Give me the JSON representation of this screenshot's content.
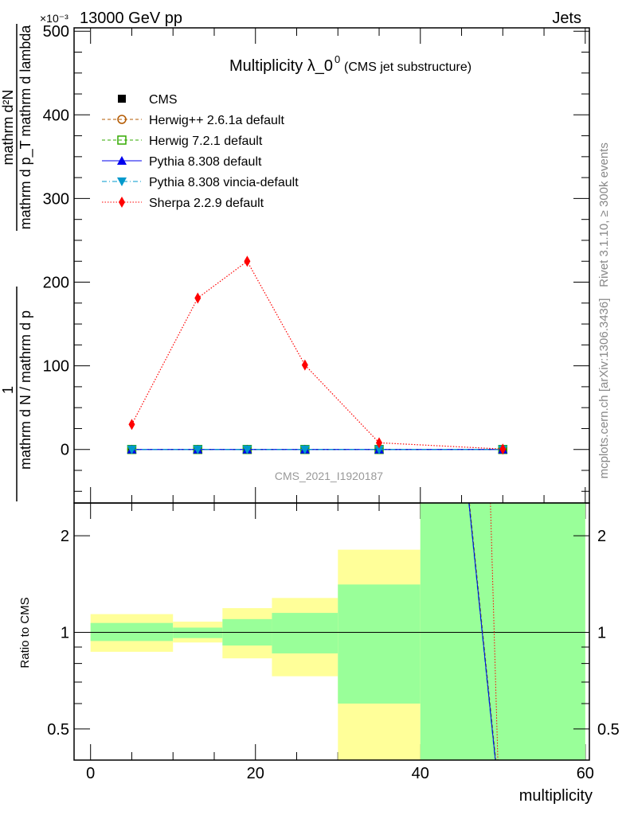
{
  "header": {
    "left": "13000 GeV pp",
    "right": "Jets",
    "exponent": "×10⁻³"
  },
  "side_text": {
    "rivet": "Rivet 3.1.10, ≥ 300k events",
    "mcplots": "mcplots.cern.ch [arXiv:1306.3436]"
  },
  "watermark": "CMS_2021_I1920187",
  "chart_data": [
    {
      "type": "line",
      "title": "Multiplicity λ_0",
      "title_sup": "0",
      "subtitle": "(CMS jet substructure)",
      "ylabel_num_left": "1",
      "ylabel_den_left": "mathrm d N / mathrm d p",
      "ylabel_num_right": "mathrm d²N",
      "ylabel_den_right": "mathrm d p_T mathrm d lambda",
      "ylim": [
        -64,
        504
      ],
      "xlim": [
        -2,
        60.5
      ],
      "yticks": [
        "0",
        "100",
        "200",
        "300",
        "400",
        "500"
      ],
      "x": [
        5,
        13,
        19,
        26,
        35,
        50
      ],
      "series": [
        {
          "name": "CMS",
          "color": "#000000",
          "marker": "square",
          "values": [
            0,
            0,
            0,
            0,
            0,
            0
          ]
        },
        {
          "name": "Herwig++ 2.6.1a default",
          "color": "#b35900",
          "marker": "circle-open",
          "dash": "4,3",
          "values": [
            0,
            0,
            0,
            0,
            0,
            0
          ]
        },
        {
          "name": "Herwig 7.2.1 default",
          "color": "#33aa00",
          "marker": "square-open",
          "dash": "4,3",
          "values": [
            0,
            0,
            0,
            0,
            0,
            0
          ]
        },
        {
          "name": "Pythia 8.308 default",
          "color": "#0000ee",
          "marker": "triangle-up",
          "dash": "",
          "values": [
            0,
            0,
            0,
            0,
            0,
            0
          ]
        },
        {
          "name": "Pythia 8.308 vincia-default",
          "color": "#0099cc",
          "marker": "triangle-down",
          "dash": "6,3,1,3",
          "values": [
            0,
            0,
            0,
            0,
            0,
            0
          ]
        },
        {
          "name": "Sherpa 2.2.9 default",
          "color": "#ff0000",
          "marker": "diamond",
          "dash": "1.5,2",
          "values": [
            30,
            181,
            225,
            101,
            8,
            0.5
          ]
        }
      ]
    },
    {
      "type": "area",
      "ylabel": "Ratio to CMS",
      "xlabel": "multiplicity",
      "ylim": [
        0.4,
        2.53
      ],
      "yscale": "log",
      "xticks": [
        "0",
        "20",
        "40",
        "60"
      ],
      "yticks": [
        "0.5",
        "1",
        "2"
      ],
      "bins": [
        [
          0,
          10
        ],
        [
          10,
          16
        ],
        [
          16,
          22
        ],
        [
          22,
          30
        ],
        [
          30,
          40
        ],
        [
          40,
          60
        ]
      ],
      "band_outer": [
        [
          0.87,
          1.14
        ],
        [
          0.93,
          1.08
        ],
        [
          0.83,
          1.19
        ],
        [
          0.73,
          1.28
        ],
        [
          0.4,
          1.81
        ],
        [
          0.4,
          2.53
        ]
      ],
      "band_inner": [
        [
          0.94,
          1.07
        ],
        [
          0.96,
          1.035
        ],
        [
          0.91,
          1.1
        ],
        [
          0.86,
          1.15
        ],
        [
          0.6,
          1.41
        ],
        [
          0.4,
          2.53
        ]
      ],
      "mc_ratio_line": {
        "x": [
          45.9,
          49.1
        ],
        "y": [
          2.53,
          0.4
        ]
      },
      "sherpa_ratio_line": {
        "x": [
          48.5,
          49.4
        ],
        "y": [
          2.53,
          0.4
        ]
      },
      "colors": {
        "outer": "#ffff99",
        "inner": "#99ff99"
      }
    }
  ]
}
